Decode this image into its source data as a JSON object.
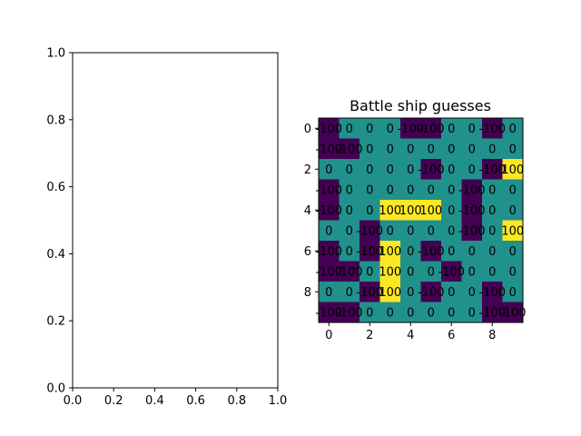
{
  "chart_data": [
    {
      "type": "line",
      "title": "",
      "xlabel": "",
      "ylabel": "",
      "xlim": [
        0.0,
        1.0
      ],
      "ylim": [
        0.0,
        1.0
      ],
      "x_ticks": [
        "0.0",
        "0.2",
        "0.4",
        "0.6",
        "0.8",
        "1.0"
      ],
      "y_ticks": [
        "0.0",
        "0.2",
        "0.4",
        "0.6",
        "0.8",
        "1.0"
      ],
      "series": []
    },
    {
      "type": "heatmap",
      "title": "Battle ship guesses",
      "xlabel": "",
      "ylabel": "",
      "colormap": "viridis",
      "value_range": [
        -100,
        100
      ],
      "x_ticks": [
        "0",
        "2",
        "4",
        "6",
        "8"
      ],
      "y_ticks": [
        "0",
        "2",
        "4",
        "6",
        "8"
      ],
      "values": [
        [
          -100,
          0,
          0,
          0,
          -100,
          -100,
          0,
          0,
          -100,
          0
        ],
        [
          -100,
          -100,
          0,
          0,
          0,
          0,
          0,
          0,
          0,
          0
        ],
        [
          0,
          0,
          0,
          0,
          0,
          -100,
          0,
          0,
          -100,
          100
        ],
        [
          -100,
          0,
          0,
          0,
          0,
          0,
          0,
          -100,
          0,
          0
        ],
        [
          -100,
          0,
          0,
          100,
          100,
          100,
          0,
          -100,
          0,
          0
        ],
        [
          0,
          0,
          -100,
          0,
          0,
          0,
          0,
          -100,
          0,
          100
        ],
        [
          -100,
          0,
          -100,
          100,
          0,
          -100,
          0,
          0,
          0,
          0
        ],
        [
          -100,
          -100,
          0,
          100,
          0,
          0,
          -100,
          0,
          0,
          0
        ],
        [
          0,
          0,
          -100,
          100,
          0,
          -100,
          0,
          0,
          -100,
          0
        ],
        [
          -100,
          -100,
          0,
          0,
          0,
          0,
          0,
          0,
          -100,
          -100
        ]
      ]
    }
  ],
  "colors": {
    "low": "#440154",
    "mid": "#21918c",
    "high": "#fde725",
    "axes": "#000000",
    "background": "#ffffff"
  }
}
